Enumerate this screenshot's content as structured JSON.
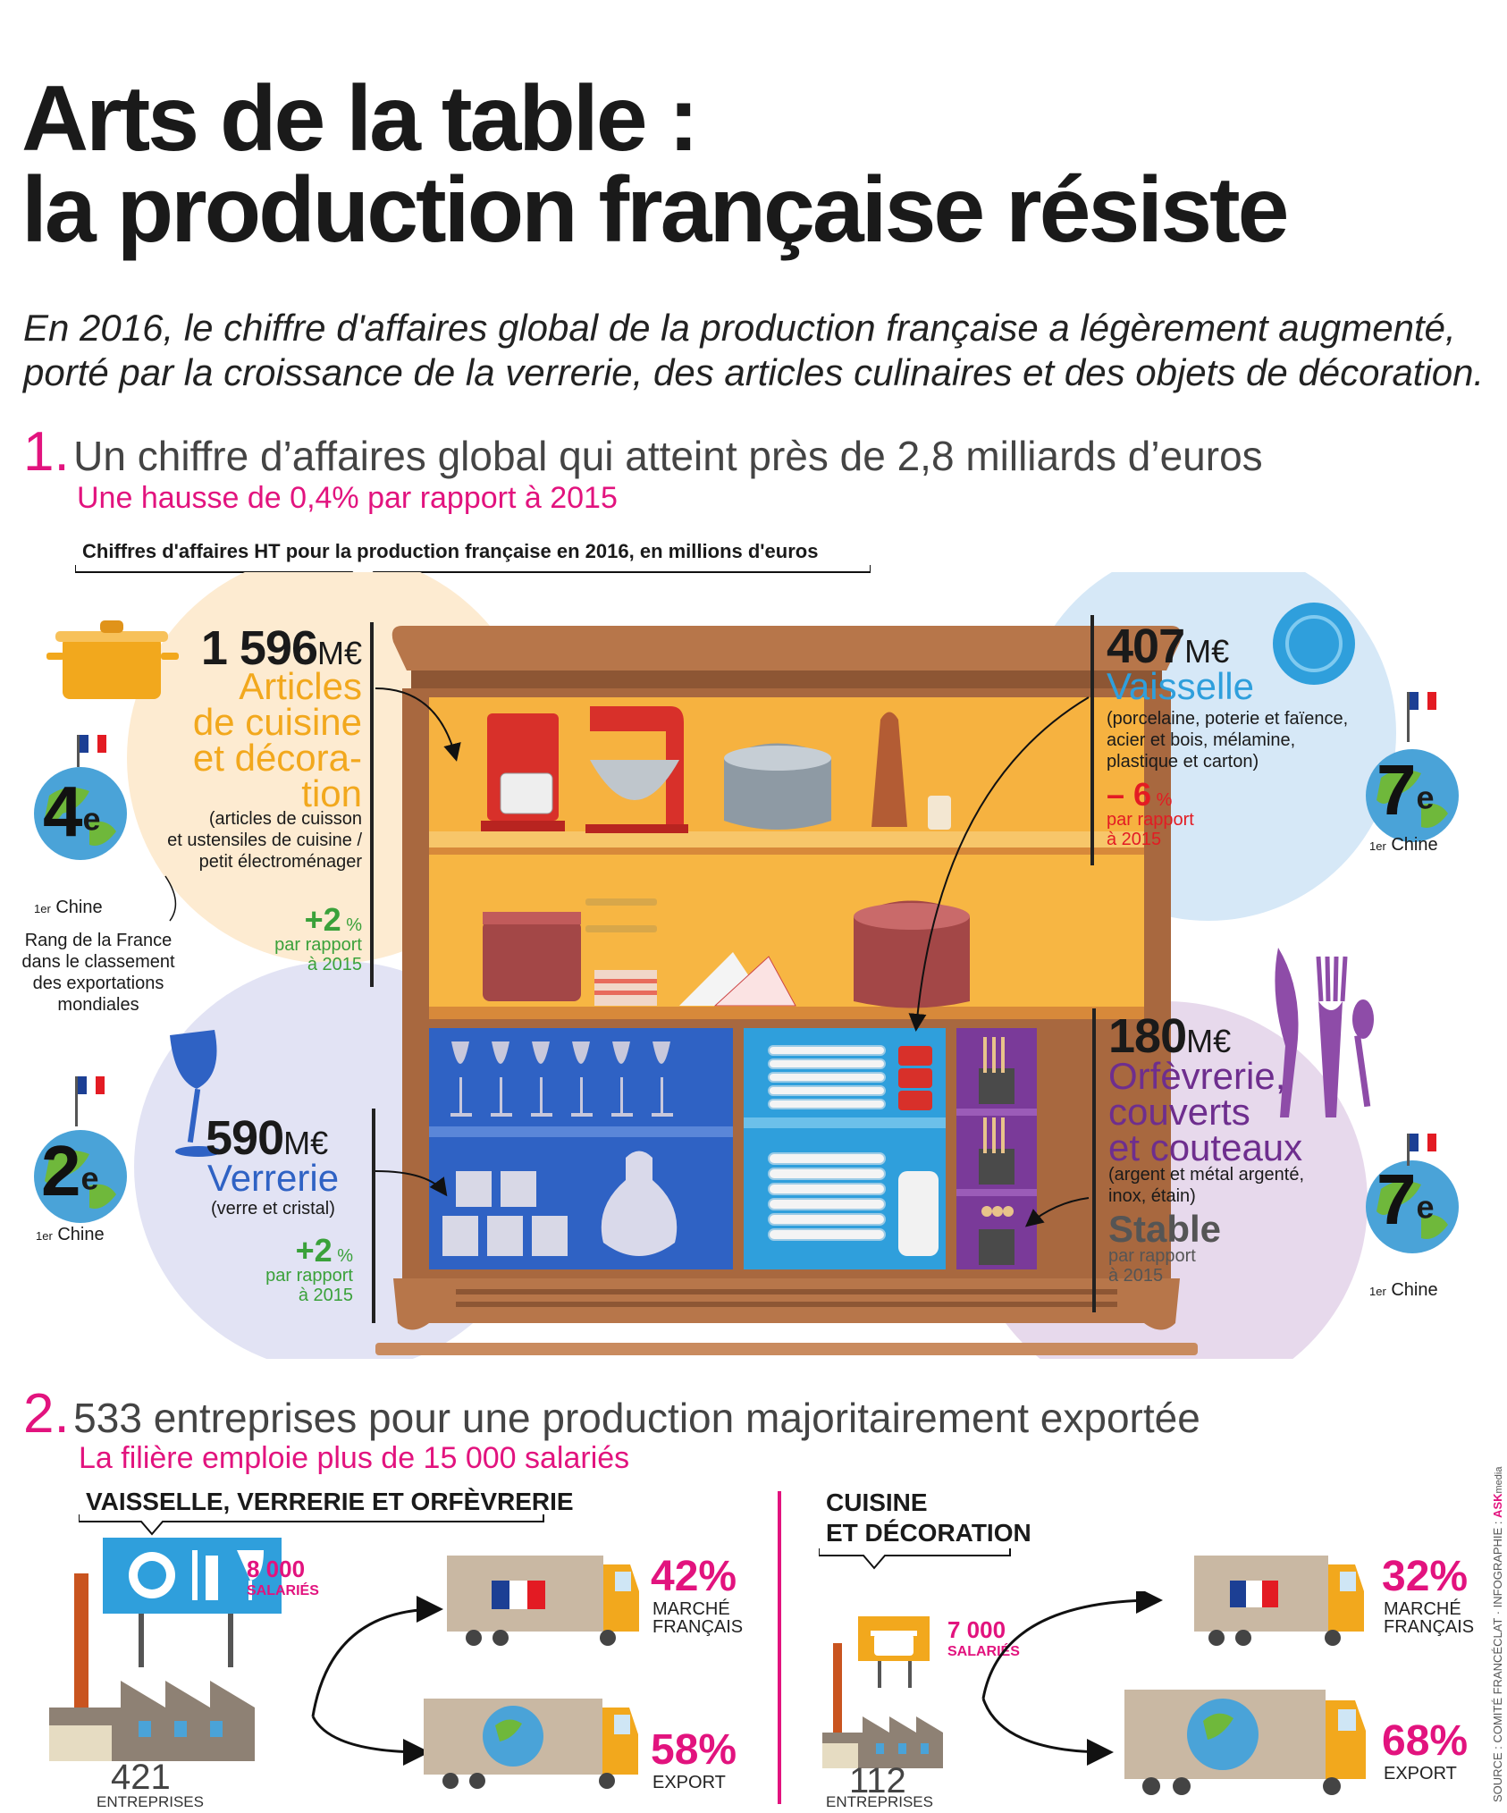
{
  "header": {
    "title_line1": "Arts de la table :",
    "title_line2": "la production française résiste",
    "intro_line1": "En 2016, le chiffre d'affaires global de la production française a légèrement augmenté,",
    "intro_line2": "porté par la croissance de la verrerie, des articles culinaires et des objets de décoration."
  },
  "section1": {
    "number": "1.",
    "title": "Un chiffre d’affaires global qui atteint près de 2,8 milliards d’euros",
    "subtitle": "Une hausse de 0,4% par rapport à 2015",
    "caption": "Chiffres d'affaires HT pour la production française en 2016, en millions d'euros",
    "categories": [
      {
        "value": "1 596",
        "unit": "M€",
        "name_lines": [
          "Articles",
          "de cuisine",
          "et décora-",
          "tion"
        ],
        "detail_lines": [
          "(articles de cuisson",
          "et ustensiles de cuisine /",
          "petit électroménager"
        ],
        "change": "+2",
        "change_unit": "%",
        "change_lines": [
          "par rapport",
          "à 2015"
        ],
        "rank": "4",
        "rank_sup": "e",
        "first": "1er",
        "first_country": "Chine",
        "rank_note_lines": [
          "Rang de la France",
          "dans le classement",
          "des exportations",
          "mondiales"
        ],
        "color": "#f2a81d"
      },
      {
        "value": "407",
        "unit": "M€",
        "name_lines": [
          "Vaisselle"
        ],
        "detail_lines": [
          "(porcelaine, poterie et faïence,",
          "acier et bois, mélamine,",
          "plastique et carton)"
        ],
        "change": "– 6",
        "change_unit": "%",
        "change_lines": [
          "par rapport",
          "à 2015"
        ],
        "rank": "7",
        "rank_sup": "e",
        "first": "1er",
        "first_country": "Chine",
        "color": "#2f9fdc"
      },
      {
        "value": "590",
        "unit": "M€",
        "name_lines": [
          "Verrerie"
        ],
        "detail_lines": [
          "(verre et cristal)"
        ],
        "change": "+2",
        "change_unit": "%",
        "change_lines": [
          "par rapport",
          "à 2015"
        ],
        "rank": "2",
        "rank_sup": "e",
        "first": "1er",
        "first_country": "Chine",
        "color": "#2f62c4"
      },
      {
        "value": "180",
        "unit": "M€",
        "name_lines": [
          "Orfèvrerie,",
          "couverts",
          "et couteaux"
        ],
        "detail_lines": [
          "(argent et métal argenté,",
          "inox, étain)"
        ],
        "change": "Stable",
        "change_lines": [
          "par rapport",
          "à 2015"
        ],
        "rank": "7",
        "rank_sup": "e",
        "first": "1er",
        "first_country": "Chine",
        "color": "#6e2e8e"
      }
    ]
  },
  "section2": {
    "number": "2.",
    "title": "533 entreprises pour une production majoritairement exportée",
    "subtitle": "La filière emploie plus de 15 000 salariés",
    "groups": [
      {
        "label_lines": [
          "VAISSELLE, VERRERIE ET ORFÈVRERIE"
        ],
        "employees": "8 000",
        "employees_label": "SALARIÉS",
        "companies": "421",
        "companies_label": "ENTREPRISES",
        "market_pct": "42%",
        "market_lines": [
          "MARCHÉ",
          "FRANÇAIS"
        ],
        "export_pct": "58%",
        "export_lines": [
          "EXPORT"
        ]
      },
      {
        "label_lines": [
          "CUISINE",
          "ET DÉCORATION"
        ],
        "employees": "7 000",
        "employees_label": "SALARIÉS",
        "companies": "112",
        "companies_label": "ENTREPRISES",
        "market_pct": "32%",
        "market_lines": [
          "MARCHÉ",
          "FRANÇAIS"
        ],
        "export_pct": "68%",
        "export_lines": [
          "EXPORT"
        ]
      }
    ]
  },
  "source": {
    "text": "SOURCE : COMITÉ FRANCÉCLAT · INFOGRAPHIE :",
    "brand": "ASK",
    "brand_suffix": "media"
  },
  "colors": {
    "accent": "#e2137e",
    "green": "#3aa13a",
    "red": "#e31b23"
  }
}
